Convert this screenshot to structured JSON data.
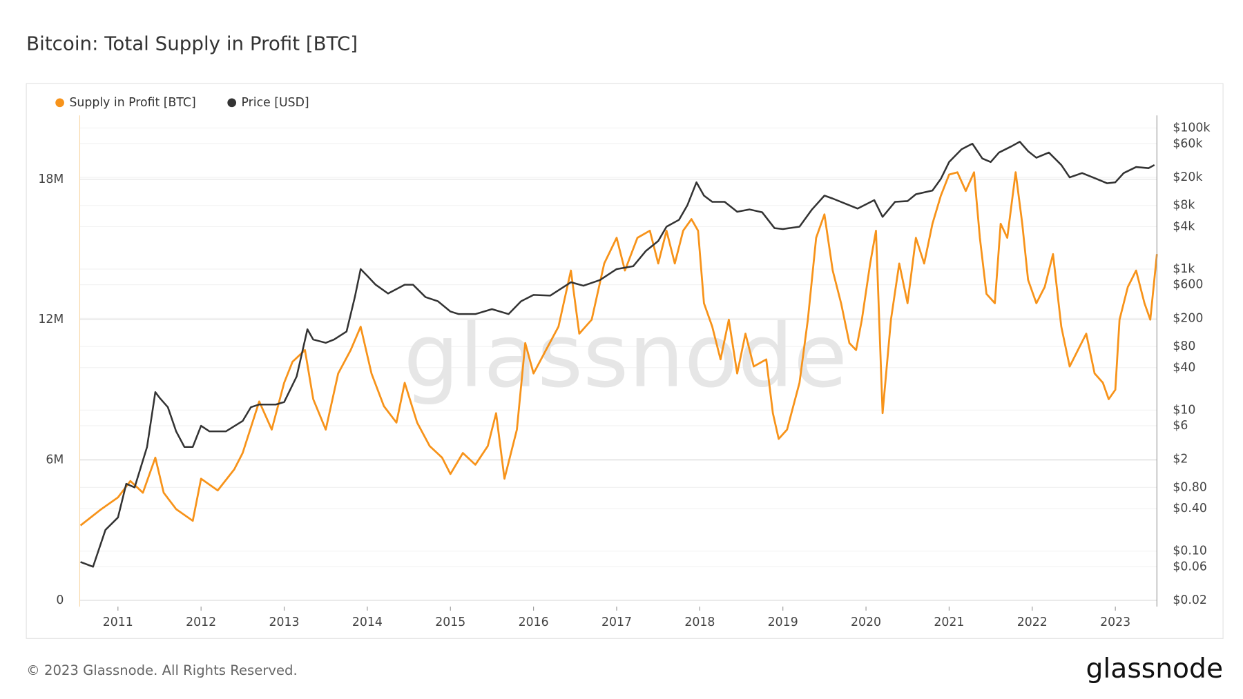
{
  "chart_data": {
    "type": "line",
    "title": "Bitcoin: Total Supply in Profit [BTC]",
    "watermark": "glassnode",
    "footer": "© 2023 Glassnode. All Rights Reserved.",
    "brand": "glassnode",
    "grid": true,
    "legend": "top-left",
    "xlim": [
      2010.54,
      2023.5
    ],
    "xticks": [
      2011,
      2012,
      2013,
      2014,
      2015,
      2016,
      2017,
      2018,
      2019,
      2020,
      2021,
      2022,
      2023
    ],
    "ylim": [
      -270000,
      20730000
    ],
    "yticks": [
      0,
      {
        "value": 6000000,
        "label": "6M"
      },
      {
        "value": 12000000,
        "label": "12M"
      },
      {
        "value": 18000000,
        "label": "18M"
      }
    ],
    "y2lim": [
      0.0163,
      151000
    ],
    "y2scale": "log",
    "y2ticks": [
      {
        "value": 100000,
        "label": "$100k"
      },
      {
        "value": 60000,
        "label": "$60k"
      },
      {
        "value": 20000,
        "label": "$20k"
      },
      {
        "value": 8000,
        "label": "$8k"
      },
      {
        "value": 4000,
        "label": "$4k"
      },
      {
        "value": 1000,
        "label": "$1k"
      },
      {
        "value": 600,
        "label": "$600"
      },
      {
        "value": 200,
        "label": "$200"
      },
      {
        "value": 80,
        "label": "$80"
      },
      {
        "value": 40,
        "label": "$40"
      },
      {
        "value": 10,
        "label": "$10"
      },
      {
        "value": 6,
        "label": "$6"
      },
      {
        "value": 2,
        "label": "$2"
      },
      {
        "value": 0.8,
        "label": "$0.80"
      },
      {
        "value": 0.4,
        "label": "$0.40"
      },
      {
        "value": 0.1,
        "label": "$0.10"
      },
      {
        "value": 0.06,
        "label": "$0.06"
      },
      {
        "value": 0.02,
        "label": "$0.02"
      }
    ],
    "series": [
      {
        "name": "Supply in Profit [BTC]",
        "color": "#f7931a",
        "x": [
          2010.55,
          2010.8,
          2011.0,
          2011.15,
          2011.3,
          2011.45,
          2011.55,
          2011.7,
          2011.9,
          2012.0,
          2012.2,
          2012.4,
          2012.5,
          2012.7,
          2012.85,
          2013.0,
          2013.1,
          2013.25,
          2013.35,
          2013.5,
          2013.65,
          2013.8,
          2013.92,
          2014.05,
          2014.2,
          2014.35,
          2014.45,
          2014.6,
          2014.75,
          2014.9,
          2015.0,
          2015.15,
          2015.3,
          2015.45,
          2015.55,
          2015.65,
          2015.8,
          2015.9,
          2016.0,
          2016.15,
          2016.3,
          2016.45,
          2016.55,
          2016.7,
          2016.85,
          2017.0,
          2017.1,
          2017.25,
          2017.4,
          2017.5,
          2017.6,
          2017.7,
          2017.8,
          2017.9,
          2017.98,
          2018.05,
          2018.15,
          2018.25,
          2018.35,
          2018.45,
          2018.55,
          2018.65,
          2018.8,
          2018.88,
          2018.95,
          2019.05,
          2019.2,
          2019.3,
          2019.4,
          2019.5,
          2019.6,
          2019.7,
          2019.8,
          2019.88,
          2019.95,
          2020.05,
          2020.12,
          2020.2,
          2020.3,
          2020.4,
          2020.5,
          2020.6,
          2020.7,
          2020.8,
          2020.9,
          2021.0,
          2021.1,
          2021.2,
          2021.3,
          2021.37,
          2021.45,
          2021.55,
          2021.62,
          2021.7,
          2021.8,
          2021.88,
          2021.95,
          2022.05,
          2022.15,
          2022.25,
          2022.35,
          2022.45,
          2022.55,
          2022.65,
          2022.75,
          2022.85,
          2022.92,
          2023.0,
          2023.05,
          2023.15,
          2023.25,
          2023.35,
          2023.42,
          2023.5
        ],
        "values": [
          3200000,
          3900000,
          4400000,
          5100000,
          4600000,
          6100000,
          4600000,
          3900000,
          3400000,
          5200000,
          4700000,
          5600000,
          6300000,
          8500000,
          7300000,
          9300000,
          10200000,
          10700000,
          8600000,
          7300000,
          9700000,
          10700000,
          11700000,
          9700000,
          8300000,
          7600000,
          9300000,
          7600000,
          6600000,
          6100000,
          5400000,
          6300000,
          5800000,
          6600000,
          8000000,
          5200000,
          7300000,
          11000000,
          9700000,
          10700000,
          11700000,
          14100000,
          11400000,
          12000000,
          14400000,
          15500000,
          14100000,
          15500000,
          15800000,
          14400000,
          15800000,
          14400000,
          15800000,
          16300000,
          15800000,
          12700000,
          11700000,
          10300000,
          12000000,
          9700000,
          11400000,
          10000000,
          10300000,
          8000000,
          6900000,
          7300000,
          9300000,
          12000000,
          15500000,
          16500000,
          14100000,
          12700000,
          11000000,
          10700000,
          12000000,
          14400000,
          15800000,
          8000000,
          12000000,
          14400000,
          12700000,
          15500000,
          14400000,
          16100000,
          17300000,
          18200000,
          18300000,
          17500000,
          18300000,
          15500000,
          13100000,
          12700000,
          16100000,
          15500000,
          18300000,
          16100000,
          13700000,
          12700000,
          13400000,
          14800000,
          11700000,
          10000000,
          10700000,
          11400000,
          9700000,
          9300000,
          8600000,
          9000000,
          12000000,
          13400000,
          14100000,
          12700000,
          12000000,
          14800000
        ]
      },
      {
        "name": "Price [USD]",
        "color": "#333333",
        "axis": "y2",
        "x": [
          2010.55,
          2010.7,
          2010.85,
          2011.0,
          2011.1,
          2011.2,
          2011.35,
          2011.45,
          2011.5,
          2011.6,
          2011.7,
          2011.8,
          2011.9,
          2012.0,
          2012.1,
          2012.3,
          2012.5,
          2012.6,
          2012.7,
          2012.9,
          2013.0,
          2013.15,
          2013.28,
          2013.35,
          2013.5,
          2013.6,
          2013.75,
          2013.85,
          2013.92,
          2014.0,
          2014.1,
          2014.25,
          2014.45,
          2014.55,
          2014.7,
          2014.85,
          2015.0,
          2015.1,
          2015.3,
          2015.5,
          2015.7,
          2015.85,
          2016.0,
          2016.2,
          2016.45,
          2016.6,
          2016.8,
          2017.0,
          2017.2,
          2017.35,
          2017.5,
          2017.6,
          2017.75,
          2017.85,
          2017.96,
          2018.05,
          2018.15,
          2018.3,
          2018.45,
          2018.6,
          2018.75,
          2018.9,
          2019.0,
          2019.2,
          2019.35,
          2019.5,
          2019.6,
          2019.75,
          2019.9,
          2020.1,
          2020.2,
          2020.35,
          2020.5,
          2020.6,
          2020.8,
          2020.9,
          2021.0,
          2021.15,
          2021.28,
          2021.4,
          2021.5,
          2021.6,
          2021.75,
          2021.85,
          2021.95,
          2022.05,
          2022.2,
          2022.35,
          2022.45,
          2022.6,
          2022.75,
          2022.9,
          2023.0,
          2023.1,
          2023.25,
          2023.4,
          2023.47
        ],
        "values": [
          0.07,
          0.06,
          0.2,
          0.3,
          0.9,
          0.8,
          3,
          18,
          15,
          11,
          5,
          3,
          3,
          6,
          5,
          5,
          7,
          11,
          12,
          12,
          13,
          30,
          140,
          100,
          90,
          100,
          130,
          400,
          1000,
          800,
          600,
          450,
          600,
          600,
          400,
          350,
          250,
          230,
          230,
          270,
          230,
          350,
          430,
          420,
          650,
          580,
          700,
          1000,
          1100,
          1800,
          2500,
          4000,
          5000,
          8000,
          17000,
          11000,
          9000,
          9000,
          6500,
          7000,
          6400,
          3800,
          3700,
          4000,
          7000,
          11000,
          10000,
          8500,
          7200,
          9500,
          5500,
          9000,
          9200,
          11500,
          13000,
          19000,
          33000,
          50000,
          60000,
          37000,
          33000,
          45000,
          55000,
          64000,
          47000,
          38000,
          45000,
          30000,
          20000,
          23000,
          19500,
          16500,
          17000,
          23000,
          28000,
          27000,
          30000
        ]
      }
    ]
  }
}
